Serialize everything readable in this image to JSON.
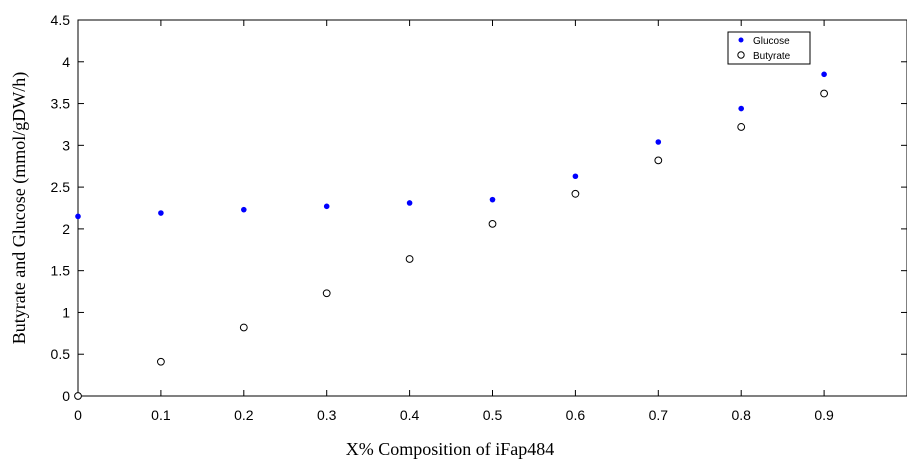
{
  "chart_data": {
    "type": "scatter",
    "x": [
      0,
      0.1,
      0.2,
      0.3,
      0.4,
      0.5,
      0.6,
      0.7,
      0.8,
      0.9
    ],
    "series": [
      {
        "name": "Glucose",
        "values": [
          2.15,
          2.19,
          2.23,
          2.27,
          2.31,
          2.35,
          2.63,
          3.04,
          3.44,
          3.85
        ],
        "marker": "filled-circle",
        "color": "#0000ff"
      },
      {
        "name": "Butyrate",
        "values": [
          0,
          0.41,
          0.82,
          1.23,
          1.64,
          2.06,
          2.42,
          2.82,
          3.22,
          3.62
        ],
        "marker": "open-circle",
        "color": "#000000"
      }
    ],
    "xlabel": "X% Composition of iFap484",
    "ylabel": "Butyrate and Glucose (mmol/gDW/h)",
    "xlim": [
      0,
      1
    ],
    "ylim": [
      0,
      4.5
    ],
    "x_ticks": [
      "0",
      "0.1",
      "0.2",
      "0.3",
      "0.4",
      "0.5",
      "0.6",
      "0.7",
      "0.8",
      "0.9"
    ],
    "y_ticks": [
      "0",
      "0.5",
      "1",
      "1.5",
      "2",
      "2.5",
      "3",
      "3.5",
      "4",
      "4.5"
    ],
    "grid": false,
    "legend_position": "top-right"
  }
}
